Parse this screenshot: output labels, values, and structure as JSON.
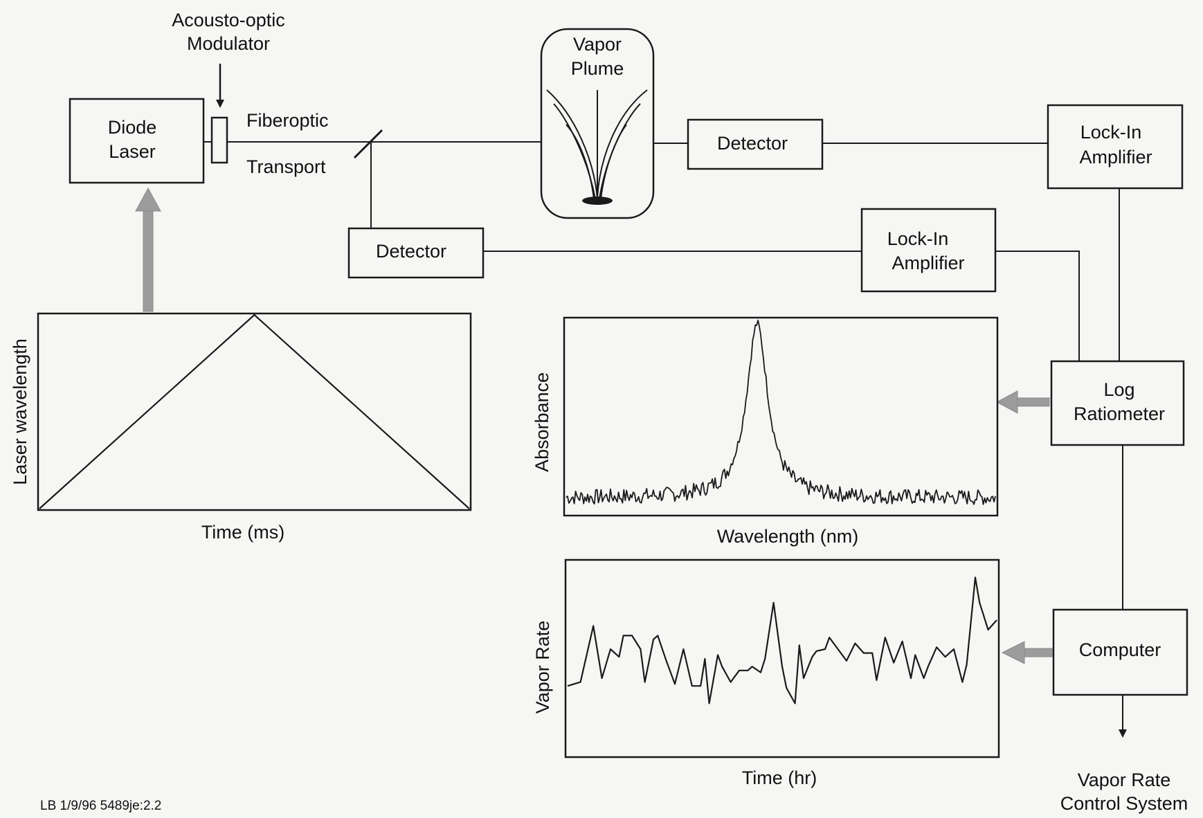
{
  "labels": {
    "aom_line1": "Acousto-optic",
    "aom_line2": "Modulator",
    "diode_line1": "Diode",
    "diode_line2": "Laser",
    "fiber_line1": "Fiberoptic",
    "fiber_line2": "Transport",
    "vapor_line1": "Vapor",
    "vapor_line2": "Plume",
    "detector_top": "Detector",
    "detector_ref": "Detector",
    "lockin_top_line1": "Lock-In",
    "lockin_top_line2": "Amplifier",
    "lockin_mid_line1": "Lock-In",
    "lockin_mid_line2": "Amplifier",
    "log_line1": "Log",
    "log_line2": "Ratiometer",
    "computer": "Computer",
    "output_line1": "Vapor Rate",
    "output_line2": "Control System",
    "footer": "LB 1/9/96  5489je:2.2"
  },
  "chart_data": [
    {
      "type": "line",
      "xlabel": "Time (ms)",
      "ylabel": "Laser wavelength",
      "title": "",
      "grid": false,
      "x": [
        0,
        0.5,
        1
      ],
      "y": [
        0,
        1,
        0
      ],
      "xlim": [
        0,
        1
      ],
      "ylim": [
        0,
        1
      ]
    },
    {
      "type": "line",
      "xlabel": "Wavelength (nm)",
      "ylabel": "Absorbance",
      "title": "",
      "grid": false,
      "xlim": [
        0,
        1
      ],
      "ylim": [
        0,
        1
      ],
      "baseline": 0.08,
      "noise": 0.04,
      "peak_center": 0.445,
      "peak_width": 0.03,
      "peak_height": 0.98
    },
    {
      "type": "line",
      "xlabel": "Time (hr)",
      "ylabel": "Vapor Rate",
      "title": "",
      "grid": false,
      "xlim": [
        0,
        1
      ],
      "ylim": [
        0,
        1
      ],
      "x": [
        0.0,
        0.03,
        0.06,
        0.08,
        0.1,
        0.12,
        0.13,
        0.15,
        0.17,
        0.18,
        0.2,
        0.21,
        0.23,
        0.25,
        0.27,
        0.29,
        0.31,
        0.32,
        0.33,
        0.35,
        0.36,
        0.38,
        0.4,
        0.42,
        0.43,
        0.45,
        0.46,
        0.48,
        0.5,
        0.51,
        0.53,
        0.54,
        0.55,
        0.57,
        0.58,
        0.6,
        0.61,
        0.63,
        0.65,
        0.67,
        0.69,
        0.71,
        0.72,
        0.74,
        0.76,
        0.78,
        0.8,
        0.81,
        0.83,
        0.84,
        0.86,
        0.88,
        0.9,
        0.92,
        0.93,
        0.95,
        0.96,
        0.98,
        1.0
      ],
      "y": [
        0.36,
        0.38,
        0.67,
        0.4,
        0.55,
        0.51,
        0.62,
        0.62,
        0.55,
        0.38,
        0.6,
        0.62,
        0.49,
        0.37,
        0.55,
        0.36,
        0.36,
        0.5,
        0.27,
        0.52,
        0.46,
        0.38,
        0.44,
        0.44,
        0.46,
        0.43,
        0.5,
        0.79,
        0.46,
        0.35,
        0.27,
        0.57,
        0.4,
        0.51,
        0.54,
        0.55,
        0.61,
        0.55,
        0.49,
        0.58,
        0.53,
        0.53,
        0.39,
        0.61,
        0.48,
        0.59,
        0.4,
        0.52,
        0.4,
        0.46,
        0.56,
        0.51,
        0.55,
        0.38,
        0.47,
        0.92,
        0.79,
        0.65,
        0.7
      ]
    }
  ]
}
